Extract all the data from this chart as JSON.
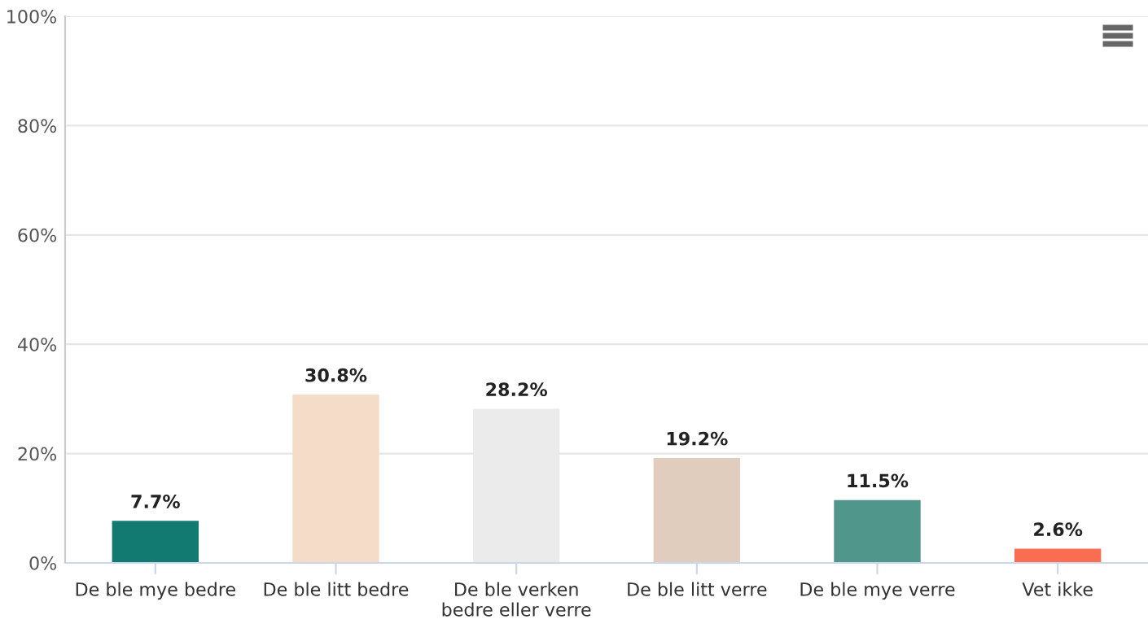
{
  "chart_data": {
    "type": "bar",
    "categories": [
      "De ble mye bedre",
      "De ble litt bedre",
      "De ble verken\nbedre eller verre",
      "De ble litt verre",
      "De ble mye verre",
      "Vet ikke"
    ],
    "values": [
      7.7,
      30.8,
      28.2,
      19.2,
      11.5,
      2.6
    ],
    "value_labels": [
      "7.7%",
      "30.8%",
      "28.2%",
      "19.2%",
      "11.5%",
      "2.6%"
    ],
    "colors": [
      "#137a72",
      "#f5dcc8",
      "#ebebeb",
      "#e0cdbd",
      "#50968a",
      "#f96d50"
    ],
    "ylim": [
      0,
      100
    ],
    "yticks": [
      {
        "value": 0,
        "label": "0%"
      },
      {
        "value": 20,
        "label": "20%"
      },
      {
        "value": 40,
        "label": "40%"
      },
      {
        "value": 60,
        "label": "60%"
      },
      {
        "value": 80,
        "label": "80%"
      },
      {
        "value": 100,
        "label": "100%"
      }
    ],
    "grid": "y",
    "legend": false
  }
}
